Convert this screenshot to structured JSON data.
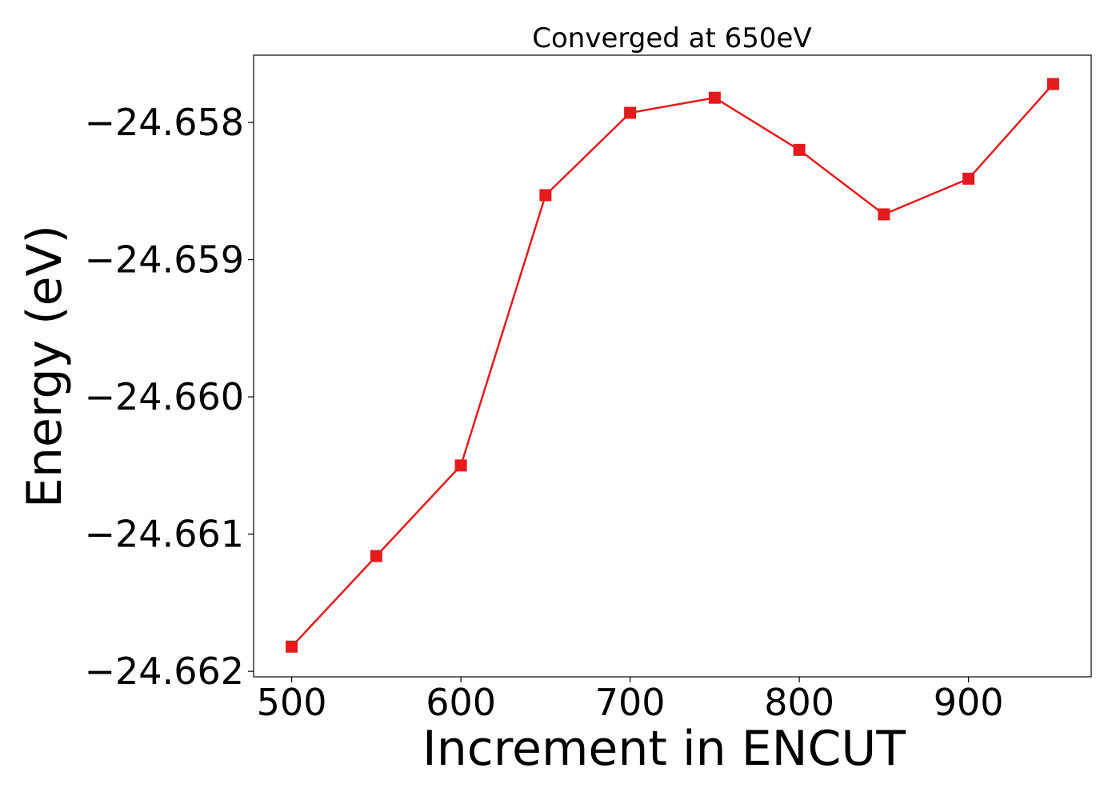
{
  "chart_data": {
    "type": "line",
    "title": "Converged at 650eV",
    "xlabel": "Increment in ENCUT",
    "ylabel": "Energy (eV)",
    "x": [
      500,
      550,
      600,
      650,
      700,
      750,
      800,
      850,
      900,
      950
    ],
    "series": [
      {
        "values": [
          -24.66182,
          -24.66116,
          -24.6605,
          -24.65853,
          -24.65793,
          -24.65782,
          -24.6582,
          -24.65867,
          -24.65841,
          -24.65772
        ],
        "color": "#e41a1c",
        "marker": "square"
      }
    ],
    "xlim": [
      477.5,
      972.5
    ],
    "ylim": [
      -24.66204,
      -24.65751
    ],
    "xticks": [
      500,
      600,
      700,
      800,
      900
    ],
    "xtick_labels": [
      "500",
      "600",
      "700",
      "800",
      "900"
    ],
    "yticks": [
      -24.662,
      -24.661,
      -24.66,
      -24.659,
      -24.658
    ],
    "ytick_labels": [
      "−24.662",
      "−24.661",
      "−24.660",
      "−24.659",
      "−24.658"
    ],
    "grid": false,
    "legend": false
  }
}
